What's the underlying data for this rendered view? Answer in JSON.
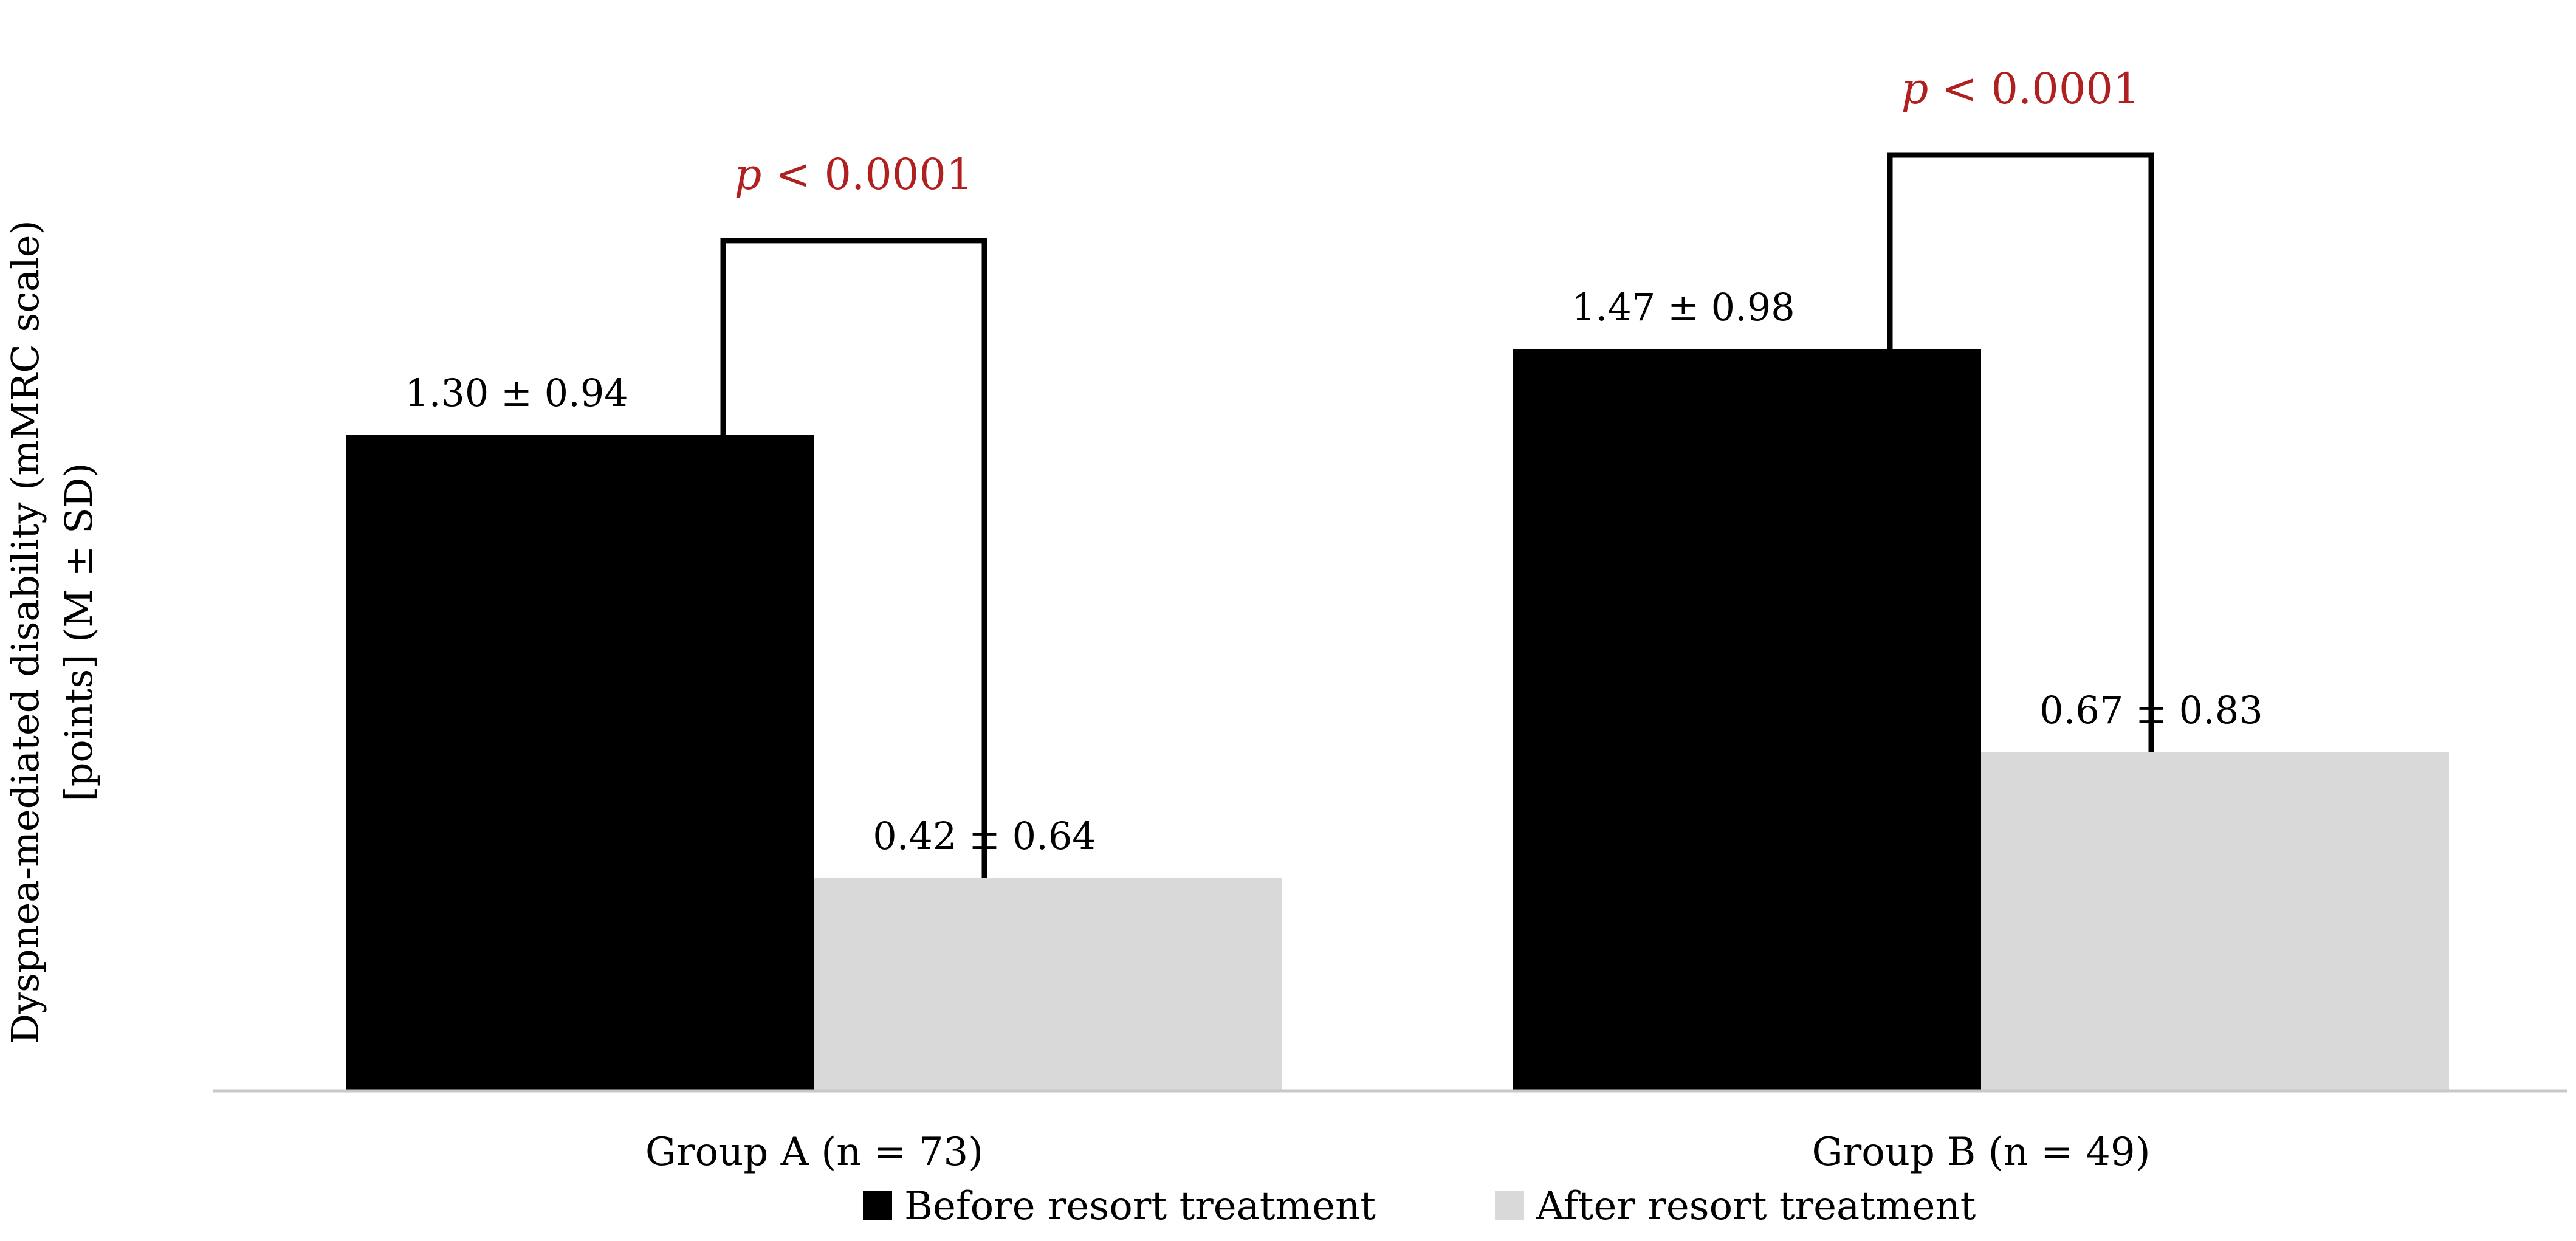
{
  "chart_data": {
    "type": "bar",
    "title": "",
    "xlabel": "",
    "ylabel_lines": [
      "Dyspnea-mediated disability (mMRC scale)",
      "[points] (M ± SD)"
    ],
    "ylim": [
      0,
      1.8
    ],
    "categories": [
      "Group A (n = 73)",
      "Group B (n = 49)"
    ],
    "series": [
      {
        "name": "Before resort treatment",
        "color": "#000000",
        "values": [
          1.3,
          1.47
        ],
        "labels": [
          "1.30 ± 0.94",
          "1.47 ± 0.98"
        ]
      },
      {
        "name": "After resort treatment",
        "color": "#d9d9d9",
        "values": [
          0.42,
          0.67
        ],
        "labels": [
          "0.42 ± 0.64",
          "0.67 ±  0.83"
        ]
      }
    ],
    "significance": [
      {
        "category_index": 0,
        "p_prefix": "p",
        "p_rest": " < 0.0001"
      },
      {
        "category_index": 1,
        "p_prefix": "p",
        "p_rest": " < 0.0001"
      }
    ],
    "grid": false,
    "legend_position": "bottom"
  }
}
